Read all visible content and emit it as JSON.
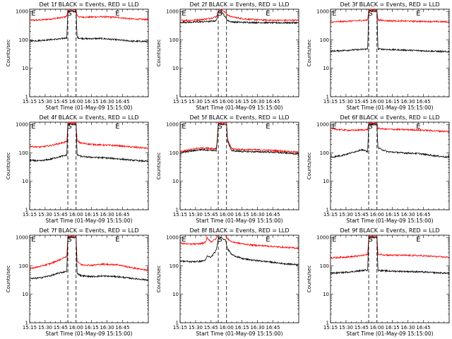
{
  "chart_data": [
    {
      "type": "line",
      "title": "Det 1f  BLACK = Events, RED = LLD",
      "xlabel": "Start Time (01-May-09 15:15:00)",
      "ylabel": "Counts/sec",
      "yscale": "log",
      "ylim": [
        1,
        1200
      ],
      "xlim_min": [
        0,
        115
      ],
      "x_tick_labels": [
        "15:15",
        "15:30",
        "15:45",
        "16:00",
        "16:15",
        "16:30",
        "16:45"
      ],
      "x_tick_min": [
        0,
        15,
        30,
        45,
        60,
        75,
        90
      ],
      "y_tick_labels": [
        "1",
        "10",
        "100",
        "1000"
      ],
      "markers": [
        {
          "label": "E",
          "x_min": 1.5
        },
        {
          "label": "S",
          "x_min": 36.5
        },
        {
          "label": "E",
          "x_min": 83
        }
      ],
      "dashed_lines_x_min": [
        37,
        45
      ],
      "series": [
        {
          "color": "#ff0000",
          "x_min": [
            0,
            10,
            20,
            30,
            34,
            36,
            37,
            45,
            46,
            48,
            55,
            70,
            85,
            100,
            115
          ],
          "values": [
            490,
            500,
            540,
            600,
            640,
            700,
            1100,
            1100,
            720,
            640,
            630,
            650,
            620,
            540,
            520
          ]
        },
        {
          "color": "#000000",
          "x_min": [
            0,
            10,
            20,
            30,
            34,
            36,
            37,
            45,
            46,
            48,
            55,
            70,
            85,
            100,
            115
          ],
          "values": [
            92,
            95,
            102,
            108,
            115,
            120,
            1000,
            1000,
            125,
            115,
            110,
            112,
            100,
            90,
            88
          ]
        }
      ]
    },
    {
      "type": "line",
      "title": "Det 2f  BLACK = Events, RED = LLD",
      "xlabel": "Start Time (01-May-09 15:15:00)",
      "ylabel": "Counts/sec",
      "yscale": "log",
      "ylim": [
        1,
        1200
      ],
      "xlim_min": [
        0,
        115
      ],
      "x_tick_labels": [
        "15:15",
        "15:30",
        "15:45",
        "16:00",
        "16:15",
        "16:30",
        "16:45"
      ],
      "x_tick_min": [
        0,
        15,
        30,
        45,
        60,
        75,
        90
      ],
      "y_tick_labels": [
        "1",
        "10",
        "100",
        "1000"
      ],
      "markers": [
        {
          "label": "E",
          "x_min": 1.5
        },
        {
          "label": "S",
          "x_min": 36.5
        },
        {
          "label": "E",
          "x_min": 83
        }
      ],
      "dashed_lines_x_min": [
        37,
        45
      ],
      "series": [
        {
          "color": "#ff0000",
          "x_min": [
            0,
            10,
            20,
            30,
            35,
            37,
            40,
            43,
            46,
            50,
            55,
            60,
            70,
            80,
            90,
            100,
            115
          ],
          "values": [
            480,
            490,
            510,
            580,
            650,
            1000,
            1150,
            1000,
            750,
            650,
            600,
            560,
            520,
            500,
            490,
            490,
            490
          ]
        },
        {
          "color": "#000000",
          "x_min": [
            0,
            10,
            20,
            30,
            35,
            37,
            40,
            43,
            46,
            50,
            55,
            60,
            70,
            80,
            90,
            100,
            115
          ],
          "values": [
            410,
            420,
            430,
            450,
            470,
            900,
            1000,
            700,
            480,
            430,
            420,
            415,
            410,
            405,
            400,
            400,
            400
          ]
        }
      ]
    },
    {
      "type": "line",
      "title": "Det 3f  BLACK = Events, RED = LLD",
      "xlabel": "Start Time (01-May-09 15:15:00)",
      "ylabel": "Counts/sec",
      "yscale": "log",
      "ylim": [
        1,
        1200
      ],
      "xlim_min": [
        0,
        115
      ],
      "x_tick_labels": [
        "15:15",
        "15:30",
        "15:45",
        "16:00",
        "16:15",
        "16:30",
        "16:45"
      ],
      "x_tick_min": [
        0,
        15,
        30,
        45,
        60,
        75,
        90
      ],
      "y_tick_labels": [
        "1",
        "10",
        "100",
        "1000"
      ],
      "markers": [
        {
          "label": "E",
          "x_min": 1.5
        },
        {
          "label": "S",
          "x_min": 36.5
        },
        {
          "label": "E",
          "x_min": 83
        }
      ],
      "dashed_lines_x_min": [
        37,
        45
      ],
      "series": [
        {
          "color": "#ff0000",
          "x_min": [
            0,
            10,
            20,
            30,
            36,
            37,
            45,
            46,
            55,
            70,
            85,
            100,
            115
          ],
          "values": [
            420,
            440,
            460,
            480,
            500,
            1100,
            1100,
            500,
            470,
            460,
            450,
            440,
            430
          ]
        },
        {
          "color": "#000000",
          "x_min": [
            0,
            10,
            20,
            30,
            36,
            37,
            45,
            46,
            55,
            70,
            85,
            100,
            115
          ],
          "values": [
            40,
            42,
            44,
            46,
            48,
            1000,
            1000,
            48,
            46,
            44,
            42,
            40,
            38
          ]
        }
      ]
    },
    {
      "type": "line",
      "title": "Det 4f  BLACK = Events, RED = LLD",
      "xlabel": "Start Time (01-May-09 15:15:00)",
      "ylabel": "Counts/sec",
      "yscale": "log",
      "ylim": [
        1,
        1200
      ],
      "xlim_min": [
        0,
        115
      ],
      "x_tick_labels": [
        "15:15",
        "15:30",
        "15:45",
        "16:00",
        "16:15",
        "16:30",
        "16:45"
      ],
      "x_tick_min": [
        0,
        15,
        30,
        45,
        60,
        75,
        90
      ],
      "y_tick_labels": [
        "1",
        "10",
        "100",
        "1000"
      ],
      "markers": [
        {
          "label": "E",
          "x_min": 1.5
        },
        {
          "label": "S",
          "x_min": 36.5
        },
        {
          "label": "E",
          "x_min": 83
        }
      ],
      "dashed_lines_x_min": [
        37,
        45
      ],
      "series": [
        {
          "color": "#ff0000",
          "x_min": [
            0,
            10,
            20,
            30,
            34,
            36,
            37,
            45,
            46,
            50,
            60,
            70,
            85,
            100,
            115
          ],
          "values": [
            170,
            160,
            180,
            220,
            240,
            250,
            1100,
            1100,
            260,
            220,
            200,
            190,
            180,
            160,
            145
          ]
        },
        {
          "color": "#000000",
          "x_min": [
            0,
            10,
            20,
            30,
            34,
            36,
            37,
            45,
            46,
            50,
            60,
            70,
            85,
            100,
            115
          ],
          "values": [
            55,
            52,
            60,
            75,
            80,
            85,
            1000,
            1000,
            85,
            75,
            70,
            68,
            62,
            55,
            50
          ]
        }
      ]
    },
    {
      "type": "line",
      "title": "Det 5f  BLACK = Events, RED = LLD",
      "xlabel": "Start Time (01-May-09 15:15:00)",
      "ylabel": "Counts/sec",
      "yscale": "log",
      "ylim": [
        1,
        1200
      ],
      "xlim_min": [
        0,
        115
      ],
      "x_tick_labels": [
        "15:15",
        "15:30",
        "15:45",
        "16:00",
        "16:15",
        "16:30",
        "16:45"
      ],
      "x_tick_min": [
        0,
        15,
        30,
        45,
        60,
        75,
        90
      ],
      "y_tick_labels": [
        "1",
        "10",
        "100",
        "1000"
      ],
      "markers": [
        {
          "label": "E",
          "x_min": 1.5
        },
        {
          "label": "S",
          "x_min": 36.5
        },
        {
          "label": "E",
          "x_min": 83
        }
      ],
      "dashed_lines_x_min": [
        37,
        45
      ],
      "series": [
        {
          "color": "#ff0000",
          "x_min": [
            0,
            10,
            20,
            30,
            35,
            36,
            37,
            45,
            46,
            50,
            60,
            70,
            85,
            100,
            115
          ],
          "values": [
            110,
            130,
            150,
            145,
            140,
            300,
            1100,
            1100,
            300,
            140,
            130,
            130,
            125,
            115,
            105
          ]
        },
        {
          "color": "#000000",
          "x_min": [
            0,
            10,
            20,
            30,
            35,
            36,
            37,
            45,
            46,
            50,
            60,
            70,
            85,
            100,
            115
          ],
          "values": [
            100,
            115,
            130,
            125,
            120,
            250,
            1000,
            1000,
            250,
            120,
            112,
            110,
            108,
            100,
            92
          ]
        }
      ]
    },
    {
      "type": "line",
      "title": "Det 6f  BLACK = Events, RED = LLD",
      "xlabel": "Start Time (01-May-09 15:15:00)",
      "ylabel": "Counts/sec",
      "yscale": "log",
      "ylim": [
        1,
        1200
      ],
      "xlim_min": [
        0,
        115
      ],
      "x_tick_labels": [
        "15:15",
        "15:30",
        "15:45",
        "16:00",
        "16:15",
        "16:30",
        "16:45"
      ],
      "x_tick_min": [
        0,
        15,
        30,
        45,
        60,
        75,
        90
      ],
      "y_tick_labels": [
        "1",
        "10",
        "100",
        "1000"
      ],
      "markers": [
        {
          "label": "E",
          "x_min": 1.5
        },
        {
          "label": "S",
          "x_min": 36.5
        },
        {
          "label": "E",
          "x_min": 83
        }
      ],
      "dashed_lines_x_min": [
        37,
        45
      ],
      "series": [
        {
          "color": "#ff0000",
          "x_min": [
            0,
            10,
            20,
            30,
            36,
            37,
            45,
            46,
            55,
            70,
            85,
            100,
            115
          ],
          "values": [
            700,
            650,
            620,
            640,
            660,
            1100,
            1100,
            720,
            680,
            660,
            640,
            600,
            560
          ]
        },
        {
          "color": "#000000",
          "x_min": [
            0,
            10,
            20,
            30,
            36,
            37,
            45,
            46,
            55,
            70,
            85,
            100,
            115
          ],
          "values": [
            70,
            80,
            100,
            130,
            110,
            1000,
            1000,
            150,
            110,
            100,
            95,
            80,
            70
          ]
        }
      ]
    },
    {
      "type": "line",
      "title": "Det 7f  BLACK = Events, RED = LLD",
      "xlabel": "Start Time (01-May-09 15:15:00)",
      "ylabel": "Counts/sec",
      "yscale": "log",
      "ylim": [
        1,
        1200
      ],
      "xlim_min": [
        0,
        115
      ],
      "x_tick_labels": [
        "15:15",
        "15:30",
        "15:45",
        "16:00",
        "16:15",
        "16:30",
        "16:45"
      ],
      "x_tick_min": [
        0,
        15,
        30,
        45,
        60,
        75,
        90
      ],
      "y_tick_labels": [
        "1",
        "10",
        "100",
        "1000"
      ],
      "markers": [
        {
          "label": "E",
          "x_min": 1.5
        },
        {
          "label": "S",
          "x_min": 36.5
        },
        {
          "label": "E",
          "x_min": 83
        }
      ],
      "dashed_lines_x_min": [
        37,
        45
      ],
      "series": [
        {
          "color": "#ff0000",
          "x_min": [
            0,
            10,
            20,
            30,
            34,
            36,
            37,
            45,
            46,
            50,
            60,
            70,
            85,
            100,
            115
          ],
          "values": [
            80,
            95,
            120,
            170,
            200,
            220,
            1100,
            1100,
            150,
            110,
            105,
            115,
            110,
            85,
            70
          ]
        },
        {
          "color": "#000000",
          "x_min": [
            0,
            10,
            20,
            30,
            34,
            36,
            37,
            45,
            46,
            50,
            60,
            70,
            85,
            100,
            115
          ],
          "values": [
            35,
            38,
            45,
            58,
            62,
            65,
            1000,
            1000,
            55,
            45,
            42,
            44,
            42,
            36,
            32
          ]
        }
      ]
    },
    {
      "type": "line",
      "title": "Det 8f  BLACK = Events, RED = LLD",
      "xlabel": "Start Time (01-May-09 15:15:00)",
      "ylabel": "Counts/sec",
      "yscale": "log",
      "ylim": [
        1,
        1200
      ],
      "xlim_min": [
        0,
        115
      ],
      "x_tick_labels": [
        "15:15",
        "15:30",
        "15:45",
        "16:00",
        "16:15",
        "16:30",
        "16:45"
      ],
      "x_tick_min": [
        0,
        15,
        30,
        45,
        60,
        75,
        90
      ],
      "y_tick_labels": [
        "1",
        "10",
        "100",
        "1000"
      ],
      "markers": [
        {
          "label": "E",
          "x_min": 1.5
        },
        {
          "label": "S",
          "x_min": 36.5
        },
        {
          "label": "E",
          "x_min": 83
        }
      ],
      "dashed_lines_x_min": [
        37,
        45
      ],
      "series": [
        {
          "color": "#ff0000",
          "x_min": [
            0,
            10,
            20,
            25,
            26,
            30,
            35,
            37,
            40,
            44,
            46,
            50,
            60,
            70,
            85,
            100,
            115
          ],
          "values": [
            620,
            580,
            600,
            680,
            1000,
            700,
            900,
            1300,
            1400,
            1200,
            900,
            700,
            600,
            540,
            500,
            450,
            420
          ]
        },
        {
          "color": "#000000",
          "x_min": [
            0,
            10,
            20,
            25,
            26,
            30,
            35,
            37,
            40,
            44,
            46,
            50,
            60,
            70,
            85,
            100,
            115
          ],
          "values": [
            150,
            140,
            145,
            160,
            220,
            200,
            350,
            900,
            1000,
            800,
            400,
            250,
            180,
            160,
            140,
            120,
            110
          ]
        }
      ]
    },
    {
      "type": "line",
      "title": "Det 9f  BLACK = Events, RED = LLD",
      "xlabel": "Start Time (01-May-09 15:15:00)",
      "ylabel": "Counts/sec",
      "yscale": "log",
      "ylim": [
        1,
        1200
      ],
      "xlim_min": [
        0,
        115
      ],
      "x_tick_labels": [
        "15:15",
        "15:30",
        "15:45",
        "16:00",
        "16:15",
        "16:30",
        "16:45"
      ],
      "x_tick_min": [
        0,
        15,
        30,
        45,
        60,
        75,
        90
      ],
      "y_tick_labels": [
        "1",
        "10",
        "100",
        "1000"
      ],
      "markers": [
        {
          "label": "E",
          "x_min": 1.5
        },
        {
          "label": "S",
          "x_min": 36.5
        },
        {
          "label": "E",
          "x_min": 83
        }
      ],
      "dashed_lines_x_min": [
        37,
        45
      ],
      "series": [
        {
          "color": "#ff0000",
          "x_min": [
            0,
            10,
            20,
            30,
            36,
            37,
            45,
            46,
            55,
            70,
            85,
            100,
            115
          ],
          "values": [
            190,
            200,
            210,
            230,
            250,
            1100,
            1100,
            260,
            240,
            235,
            230,
            215,
            200
          ]
        },
        {
          "color": "#000000",
          "x_min": [
            0,
            10,
            20,
            30,
            36,
            37,
            45,
            46,
            55,
            70,
            85,
            100,
            115
          ],
          "values": [
            55,
            58,
            62,
            68,
            72,
            1000,
            1000,
            70,
            66,
            64,
            62,
            58,
            55
          ]
        }
      ]
    }
  ]
}
